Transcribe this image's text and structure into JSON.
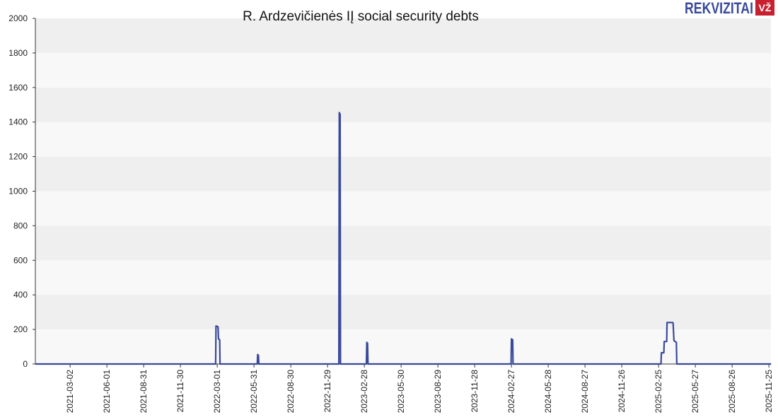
{
  "logo": {
    "text": "REKVIZITAI",
    "badge": "VŽ",
    "text_color": "#3a4a9a",
    "badge_color": "#c8202f"
  },
  "colors": {
    "line": "#3a4a9a",
    "band_dark": "#efefef",
    "band_light": "#f8f8f8",
    "axis": "#333333"
  },
  "chart_data": {
    "type": "line",
    "title": "R. Ardzevičienės IĮ social security debts",
    "xlabel": "",
    "ylabel": "",
    "x_axis": "date",
    "xlim": [
      "2020-12-06",
      "2025-11-30"
    ],
    "ylim": [
      0,
      2000
    ],
    "yticks": [
      0,
      200,
      400,
      600,
      800,
      1000,
      1200,
      1400,
      1600,
      1800,
      2000
    ],
    "xticks": [
      "2021-03-02",
      "2021-06-01",
      "2021-08-31",
      "2021-11-30",
      "2022-03-01",
      "2022-05-31",
      "2022-08-30",
      "2022-11-29",
      "2023-02-28",
      "2023-05-30",
      "2023-08-29",
      "2023-11-28",
      "2024-02-27",
      "2024-05-28",
      "2024-08-27",
      "2024-11-26",
      "2025-02-25",
      "2025-05-27",
      "2025-08-26",
      "2025-11-25"
    ],
    "grid": "horizontal bands",
    "series": [
      {
        "points": [
          [
            "2020-12-06",
            0
          ],
          [
            "2022-02-25",
            0
          ],
          [
            "2022-02-26",
            220
          ],
          [
            "2022-03-03",
            215
          ],
          [
            "2022-03-04",
            145
          ],
          [
            "2022-03-07",
            140
          ],
          [
            "2022-03-08",
            0
          ],
          [
            "2022-06-08",
            0
          ],
          [
            "2022-06-09",
            55
          ],
          [
            "2022-06-11",
            50
          ],
          [
            "2022-06-12",
            0
          ],
          [
            "2022-12-27",
            0
          ],
          [
            "2022-12-28",
            1455
          ],
          [
            "2022-12-30",
            1445
          ],
          [
            "2022-12-31",
            0
          ],
          [
            "2023-03-05",
            0
          ],
          [
            "2023-03-06",
            125
          ],
          [
            "2023-03-08",
            120
          ],
          [
            "2023-03-09",
            0
          ],
          [
            "2024-02-26",
            0
          ],
          [
            "2024-02-27",
            145
          ],
          [
            "2024-03-01",
            140
          ],
          [
            "2024-03-02",
            0
          ],
          [
            "2025-03-03",
            0
          ],
          [
            "2025-03-04",
            65
          ],
          [
            "2025-03-10",
            65
          ],
          [
            "2025-03-11",
            130
          ],
          [
            "2025-03-17",
            130
          ],
          [
            "2025-03-18",
            240
          ],
          [
            "2025-04-01",
            240
          ],
          [
            "2025-04-02",
            235
          ],
          [
            "2025-04-04",
            135
          ],
          [
            "2025-04-10",
            125
          ],
          [
            "2025-04-11",
            0
          ],
          [
            "2025-11-30",
            0
          ]
        ]
      }
    ]
  }
}
